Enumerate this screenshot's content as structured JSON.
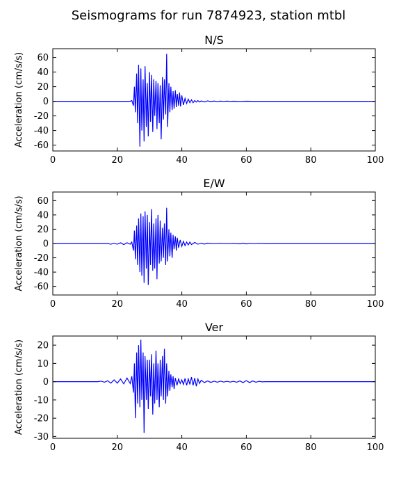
{
  "figure": {
    "suptitle": "Seismograms for run 7874923, station mtbl",
    "series_color": "#0000ff"
  },
  "chart_data": [
    {
      "type": "line",
      "title": "N/S",
      "ylabel": "Acceleration (cm/s/s)",
      "xlabel": "",
      "xlim": [
        0,
        100
      ],
      "ylim": [
        -68,
        72
      ],
      "xticks": [
        0,
        20,
        40,
        60,
        80,
        100
      ],
      "yticks": [
        -60,
        -40,
        -20,
        0,
        20,
        40,
        60
      ],
      "grid": false,
      "series": [
        {
          "x": [
            0,
            10,
            24,
            24.5,
            25,
            25.3,
            25.6,
            26,
            26.3,
            26.6,
            27,
            27.3,
            27.6,
            28,
            28.3,
            28.6,
            29,
            29.3,
            29.6,
            30,
            30.3,
            30.6,
            31,
            31.3,
            31.6,
            32,
            32.3,
            32.6,
            33,
            33.3,
            33.6,
            34,
            34.3,
            34.6,
            35,
            35.3,
            35.6,
            36,
            36.3,
            36.6,
            37,
            37.3,
            37.6,
            38,
            38.3,
            38.6,
            39,
            39.3,
            39.6,
            40,
            40.5,
            41,
            41.5,
            42,
            42.5,
            43,
            43.5,
            44,
            44.5,
            45,
            45.5,
            46,
            47,
            48,
            49,
            50,
            51,
            52,
            53,
            54,
            55,
            56,
            58,
            60,
            62,
            64,
            66,
            70,
            80,
            90,
            100
          ],
          "y": [
            0,
            0,
            0,
            1,
            -6,
            20,
            -15,
            38,
            -30,
            50,
            -62,
            45,
            -40,
            30,
            -55,
            48,
            -35,
            25,
            -48,
            40,
            -28,
            36,
            -42,
            30,
            -20,
            28,
            -38,
            25,
            -30,
            22,
            -52,
            33,
            -25,
            30,
            -18,
            65,
            -35,
            25,
            -15,
            20,
            -12,
            14,
            -10,
            15,
            -8,
            10,
            -6,
            12,
            -7,
            8,
            -5,
            4,
            -3,
            3,
            -2,
            2,
            -2,
            1,
            -1,
            1,
            -1,
            0.5,
            -0.8,
            0.6,
            -0.4,
            0.3,
            -0.3,
            0.2,
            -0.2,
            0.2,
            -0.1,
            0.1,
            -0.1,
            0.1,
            0,
            0,
            0,
            0,
            0,
            0,
            0
          ]
        }
      ]
    },
    {
      "type": "line",
      "title": "E/W",
      "ylabel": "Acceleration (cm/s/s)",
      "xlabel": "",
      "xlim": [
        0,
        100
      ],
      "ylim": [
        -72,
        72
      ],
      "xticks": [
        0,
        20,
        40,
        60,
        80,
        100
      ],
      "yticks": [
        -60,
        -40,
        -20,
        0,
        20,
        40,
        60
      ],
      "grid": false,
      "series": [
        {
          "x": [
            0,
            15,
            17,
            18,
            19,
            20,
            21,
            22,
            23,
            24,
            24.5,
            25,
            25.3,
            25.6,
            26,
            26.3,
            26.6,
            27,
            27.3,
            27.6,
            28,
            28.3,
            28.6,
            29,
            29.3,
            29.6,
            30,
            30.3,
            30.6,
            31,
            31.3,
            31.6,
            32,
            32.3,
            32.6,
            33,
            33.3,
            33.6,
            34,
            34.3,
            34.6,
            35,
            35.3,
            35.6,
            36,
            36.3,
            36.6,
            37,
            37.3,
            37.6,
            38,
            38.3,
            38.6,
            39,
            39.5,
            40,
            40.5,
            41,
            41.5,
            42,
            42.5,
            43,
            44,
            45,
            46,
            47,
            48,
            50,
            52,
            54,
            56,
            58,
            59,
            60,
            61,
            62,
            64,
            66,
            70,
            80,
            90,
            100
          ],
          "y": [
            0,
            0,
            0,
            -1,
            0.5,
            -1,
            1,
            -1.5,
            1,
            -1,
            2,
            -10,
            18,
            -22,
            25,
            -30,
            35,
            -40,
            42,
            -45,
            38,
            -55,
            45,
            -35,
            40,
            -58,
            30,
            -30,
            48,
            -38,
            28,
            -35,
            35,
            -50,
            40,
            -28,
            32,
            -25,
            22,
            -20,
            28,
            -30,
            50,
            -25,
            20,
            -18,
            15,
            -20,
            12,
            -8,
            10,
            -10,
            8,
            -6,
            5,
            -4,
            3,
            -3,
            2,
            -2,
            2,
            -1.5,
            1.5,
            -1,
            0.5,
            -0.8,
            0.5,
            -0.3,
            0.3,
            -0.3,
            0.2,
            -0.5,
            0.5,
            -0.6,
            0.4,
            -0.3,
            0.2,
            -0.1,
            0,
            0,
            0,
            0
          ]
        }
      ]
    },
    {
      "type": "line",
      "title": "Ver",
      "ylabel": "Acceleration (cm/s/s)",
      "xlabel": "",
      "xlim": [
        0,
        100
      ],
      "ylim": [
        -31,
        25
      ],
      "xticks": [
        0,
        20,
        40,
        60,
        80,
        100
      ],
      "yticks": [
        -30,
        -20,
        -10,
        0,
        10,
        20
      ],
      "grid": false,
      "series": [
        {
          "x": [
            0,
            14,
            15,
            16,
            17,
            18,
            19,
            20,
            21,
            22,
            23,
            24,
            24.5,
            25,
            25.3,
            25.6,
            26,
            26.3,
            26.6,
            27,
            27.3,
            27.6,
            28,
            28.3,
            28.6,
            29,
            29.3,
            29.6,
            30,
            30.3,
            30.6,
            31,
            31.3,
            31.6,
            32,
            32.3,
            32.6,
            33,
            33.3,
            33.6,
            34,
            34.3,
            34.6,
            35,
            35.3,
            35.6,
            36,
            36.3,
            36.6,
            37,
            37.3,
            37.6,
            38,
            38.5,
            39,
            39.5,
            40,
            40.5,
            41,
            41.5,
            42,
            42.5,
            43,
            43.5,
            44,
            44.5,
            45,
            45.5,
            46,
            47,
            48,
            49,
            50,
            51,
            52,
            53,
            54,
            55,
            56,
            57,
            58,
            59,
            60,
            61,
            62,
            63,
            64,
            65,
            66,
            70,
            80,
            90,
            100
          ],
          "y": [
            0,
            0,
            0.3,
            -0.3,
            0.5,
            -0.8,
            1,
            -0.8,
            1.5,
            -1.2,
            2,
            -1,
            3,
            -6,
            10,
            -20,
            16,
            -12,
            20,
            -14,
            23,
            -10,
            16,
            -28,
            14,
            -10,
            12,
            -15,
            12,
            -8,
            15,
            -18,
            10,
            -12,
            17,
            -10,
            10,
            -14,
            12,
            -8,
            14,
            -10,
            18,
            -12,
            10,
            -8,
            6,
            -5,
            4,
            -3,
            3,
            -4,
            2,
            -2,
            1.5,
            -1,
            1,
            -1.5,
            1.8,
            -2,
            1.5,
            -1.5,
            2.5,
            -2,
            2,
            -2.5,
            1.5,
            -1,
            0.8,
            -0.5,
            0.4,
            -0.4,
            0.3,
            -0.3,
            0.3,
            -0.2,
            0.2,
            -0.2,
            0.2,
            -0.3,
            0.4,
            -0.5,
            0.6,
            -0.5,
            0.4,
            -0.3,
            0.2,
            -0.1,
            0,
            0,
            0,
            0,
            0
          ]
        }
      ]
    }
  ]
}
